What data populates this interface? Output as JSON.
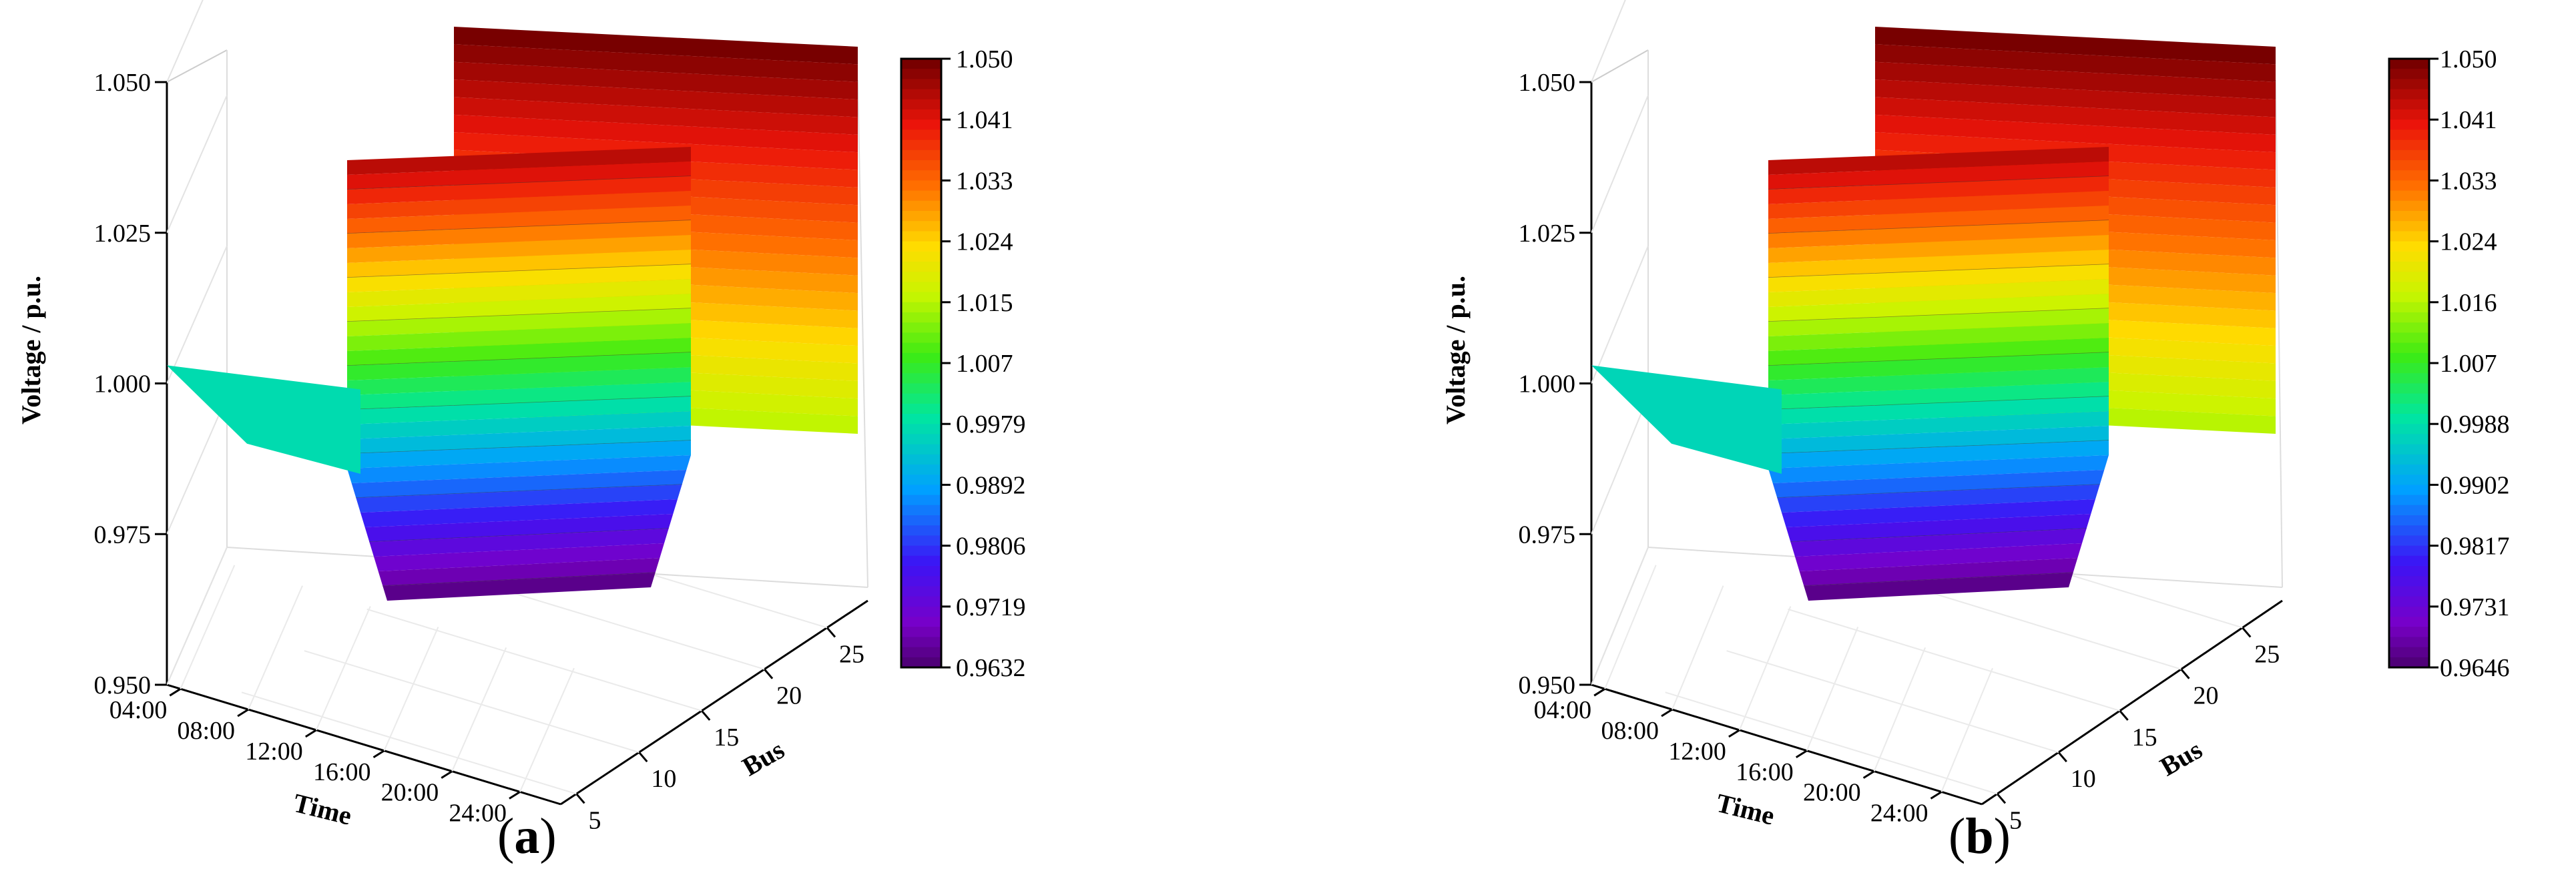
{
  "chart_data": [
    {
      "type": "surface3d",
      "panel_label": "a",
      "xlabel": "Time",
      "ylabel": "Bus",
      "zlabel": "Voltage / p.u.",
      "x_ticks": [
        "04:00",
        "08:00",
        "12:00",
        "16:00",
        "20:00",
        "24:00"
      ],
      "y_ticks": [
        "5",
        "10",
        "15",
        "20",
        "25"
      ],
      "z_ticks": [
        "0.950",
        "0.975",
        "1.000",
        "1.025",
        "1.050"
      ],
      "zlim": [
        0.95,
        1.05
      ],
      "colorbar_ticks": [
        "1.050",
        "1.041",
        "1.033",
        "1.024",
        "1.015",
        "1.007",
        "0.9979",
        "0.9892",
        "0.9806",
        "0.9719",
        "0.9632"
      ],
      "colorbar_range": [
        0.9632,
        1.05
      ],
      "colormap": "rainbow",
      "grid": true
    },
    {
      "type": "surface3d",
      "panel_label": "b",
      "xlabel": "Time",
      "ylabel": "Bus",
      "zlabel": "Voltage / p.u.",
      "x_ticks": [
        "04:00",
        "08:00",
        "12:00",
        "16:00",
        "20:00",
        "24:00"
      ],
      "y_ticks": [
        "5",
        "10",
        "15",
        "20",
        "25"
      ],
      "z_ticks": [
        "0.950",
        "0.975",
        "1.000",
        "1.025",
        "1.050"
      ],
      "zlim": [
        0.95,
        1.05
      ],
      "colorbar_ticks": [
        "1.050",
        "1.041",
        "1.033",
        "1.024",
        "1.016",
        "1.007",
        "0.9988",
        "0.9902",
        "0.9817",
        "0.9731",
        "0.9646"
      ],
      "colorbar_range": [
        0.9646,
        1.05
      ],
      "colormap": "rainbow",
      "grid": true
    }
  ],
  "panel_labels": {
    "a": {
      "open": "(",
      "letter": "a",
      "close": ")"
    },
    "b": {
      "open": "(",
      "letter": "b",
      "close": ")"
    }
  }
}
